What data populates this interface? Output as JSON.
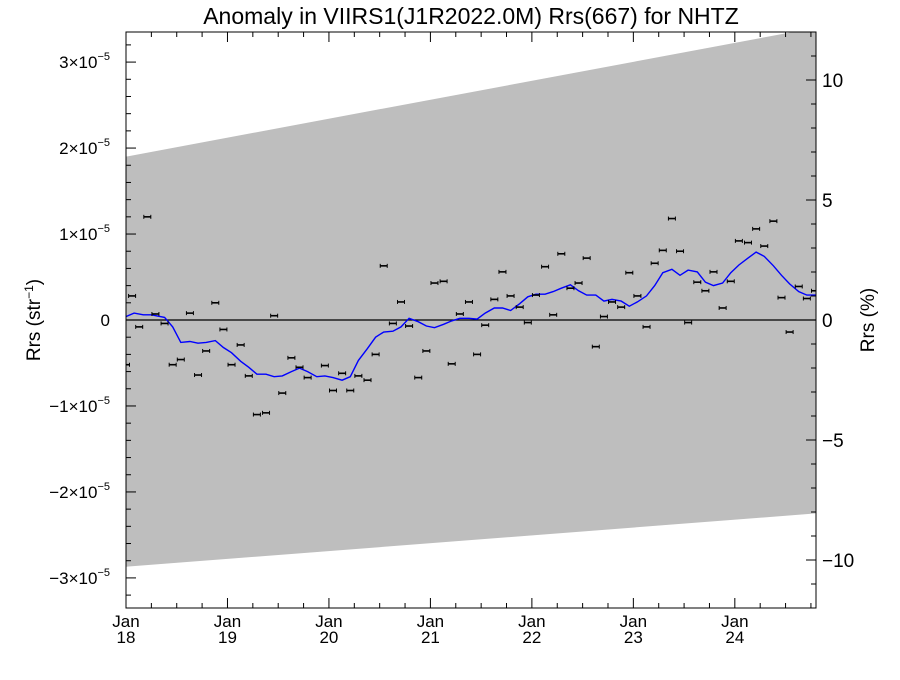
{
  "chart_data": {
    "type": "scatter",
    "title": "Anomaly in VIIRS1(J1R2022.0M) Rrs(667) for NHTZ",
    "ylabel_left_base": "Rrs (str",
    "ylabel_left_sup": "−1",
    "ylabel_left_end": ")",
    "ylabel_right": "Rrs (%)",
    "xlim": [
      2018.0,
      2024.8
    ],
    "ylim_left": [
      -3.35e-05,
      3.35e-05
    ],
    "ylim_right": [
      -12,
      12
    ],
    "x_ticks": [
      {
        "x": 2018.0,
        "top": "Jan",
        "bottom": "18"
      },
      {
        "x": 2019.0,
        "top": "Jan",
        "bottom": "19"
      },
      {
        "x": 2020.0,
        "top": "Jan",
        "bottom": "20"
      },
      {
        "x": 2021.0,
        "top": "Jan",
        "bottom": "21"
      },
      {
        "x": 2022.0,
        "top": "Jan",
        "bottom": "22"
      },
      {
        "x": 2023.0,
        "top": "Jan",
        "bottom": "23"
      },
      {
        "x": 2024.0,
        "top": "Jan",
        "bottom": "24"
      }
    ],
    "y_ticks_left": [
      {
        "v": 3e-05,
        "mant": "3×10",
        "exp": "−5"
      },
      {
        "v": 2e-05,
        "mant": "2×10",
        "exp": "−5"
      },
      {
        "v": 1e-05,
        "mant": "1×10",
        "exp": "−5"
      },
      {
        "v": 0,
        "mant": "0",
        "exp": ""
      },
      {
        "v": -1e-05,
        "mant": "−1×10",
        "exp": "−5"
      },
      {
        "v": -2e-05,
        "mant": "−2×10",
        "exp": "−5"
      },
      {
        "v": -3e-05,
        "mant": "−3×10",
        "exp": "−5"
      }
    ],
    "y_ticks_right": [
      {
        "v": 10,
        "label": "10"
      },
      {
        "v": 5,
        "label": "5"
      },
      {
        "v": 0,
        "label": "0"
      },
      {
        "v": -5,
        "label": "−5"
      },
      {
        "v": -10,
        "label": "−10"
      }
    ],
    "band": {
      "upper": [
        [
          2018.0,
          1.9e-05
        ],
        [
          2024.8,
          3.4e-05
        ]
      ],
      "lower": [
        [
          2018.0,
          -2.87e-05
        ],
        [
          2024.8,
          -2.25e-05
        ]
      ],
      "color": "#bebebe"
    },
    "zero_line": 0,
    "points": [
      [
        2018.0,
        -5.2e-06
      ],
      [
        2018.06,
        2.8e-06
      ],
      [
        2018.13,
        -8e-07
      ],
      [
        2018.21,
        1.2e-05
      ],
      [
        2018.29,
        7e-07
      ],
      [
        2018.38,
        -4e-07
      ],
      [
        2018.46,
        -5.2e-06
      ],
      [
        2018.54,
        -4.6e-06
      ],
      [
        2018.63,
        8e-07
      ],
      [
        2018.71,
        -6.4e-06
      ],
      [
        2018.79,
        -3.6e-06
      ],
      [
        2018.88,
        2e-06
      ],
      [
        2018.96,
        -1.1e-06
      ],
      [
        2019.04,
        -5.2e-06
      ],
      [
        2019.13,
        -2.9e-06
      ],
      [
        2019.21,
        -6.5e-06
      ],
      [
        2019.29,
        -1.1e-05
      ],
      [
        2019.38,
        -1.08e-05
      ],
      [
        2019.46,
        5e-07
      ],
      [
        2019.54,
        -8.5e-06
      ],
      [
        2019.63,
        -4.4e-06
      ],
      [
        2019.71,
        -5.5e-06
      ],
      [
        2019.79,
        -6.7e-06
      ],
      [
        2019.96,
        -5.3e-06
      ],
      [
        2020.04,
        -8.2e-06
      ],
      [
        2020.13,
        -6.2e-06
      ],
      [
        2020.21,
        -8.2e-06
      ],
      [
        2020.29,
        -6.5e-06
      ],
      [
        2020.38,
        -7e-06
      ],
      [
        2020.46,
        -4e-06
      ],
      [
        2020.54,
        6.3e-06
      ],
      [
        2020.63,
        -4e-07
      ],
      [
        2020.71,
        2.1e-06
      ],
      [
        2020.79,
        -7e-07
      ],
      [
        2020.88,
        -6.7e-06
      ],
      [
        2020.96,
        -3.6e-06
      ],
      [
        2021.04,
        4.3e-06
      ],
      [
        2021.13,
        4.5e-06
      ],
      [
        2021.21,
        -5.1e-06
      ],
      [
        2021.29,
        7e-07
      ],
      [
        2021.38,
        2.1e-06
      ],
      [
        2021.46,
        -4e-06
      ],
      [
        2021.54,
        -6e-07
      ],
      [
        2021.63,
        2.4e-06
      ],
      [
        2021.71,
        5.6e-06
      ],
      [
        2021.79,
        2.8e-06
      ],
      [
        2021.88,
        1.5e-06
      ],
      [
        2021.96,
        -3e-07
      ],
      [
        2022.04,
        2.9e-06
      ],
      [
        2022.13,
        6.2e-06
      ],
      [
        2022.21,
        6e-07
      ],
      [
        2022.29,
        7.7e-06
      ],
      [
        2022.38,
        3.7e-06
      ],
      [
        2022.46,
        4.3e-06
      ],
      [
        2022.54,
        7.2e-06
      ],
      [
        2022.63,
        -3.1e-06
      ],
      [
        2022.71,
        4e-07
      ],
      [
        2022.79,
        2.1e-06
      ],
      [
        2022.88,
        1.5e-06
      ],
      [
        2022.96,
        5.5e-06
      ],
      [
        2023.04,
        2.8e-06
      ],
      [
        2023.13,
        -8e-07
      ],
      [
        2023.21,
        6.6e-06
      ],
      [
        2023.29,
        8.1e-06
      ],
      [
        2023.38,
        1.18e-05
      ],
      [
        2023.46,
        8e-06
      ],
      [
        2023.54,
        -3e-07
      ],
      [
        2023.63,
        4.4e-06
      ],
      [
        2023.71,
        3.4e-06
      ],
      [
        2023.79,
        5.6e-06
      ],
      [
        2023.88,
        1.4e-06
      ],
      [
        2023.96,
        4.5e-06
      ],
      [
        2024.04,
        9.2e-06
      ],
      [
        2024.13,
        9e-06
      ],
      [
        2024.21,
        1.06e-05
      ],
      [
        2024.29,
        8.6e-06
      ],
      [
        2024.38,
        1.15e-05
      ],
      [
        2024.46,
        2.6e-06
      ],
      [
        2024.54,
        -1.4e-06
      ],
      [
        2024.63,
        3.9e-06
      ],
      [
        2024.71,
        2.5e-06
      ],
      [
        2024.79,
        3.4e-06
      ]
    ],
    "smooth_line": [
      [
        2018.0,
        4e-07
      ],
      [
        2018.08,
        8e-07
      ],
      [
        2018.17,
        6e-07
      ],
      [
        2018.25,
        6e-07
      ],
      [
        2018.38,
        3e-07
      ],
      [
        2018.46,
        -8e-07
      ],
      [
        2018.54,
        -2.6e-06
      ],
      [
        2018.63,
        -2.5e-06
      ],
      [
        2018.71,
        -2.7e-06
      ],
      [
        2018.79,
        -2.6e-06
      ],
      [
        2018.88,
        -2.4e-06
      ],
      [
        2018.96,
        -3.2e-06
      ],
      [
        2019.04,
        -3.8e-06
      ],
      [
        2019.13,
        -4.8e-06
      ],
      [
        2019.21,
        -5.5e-06
      ],
      [
        2019.29,
        -6.3e-06
      ],
      [
        2019.38,
        -6.3e-06
      ],
      [
        2019.46,
        -6.6e-06
      ],
      [
        2019.54,
        -6.5e-06
      ],
      [
        2019.63,
        -6e-06
      ],
      [
        2019.71,
        -5.6e-06
      ],
      [
        2019.79,
        -6e-06
      ],
      [
        2019.88,
        -6.6e-06
      ],
      [
        2019.96,
        -6.5e-06
      ],
      [
        2020.04,
        -6.7e-06
      ],
      [
        2020.13,
        -7e-06
      ],
      [
        2020.21,
        -6.6e-06
      ],
      [
        2020.29,
        -4.7e-06
      ],
      [
        2020.38,
        -3.3e-06
      ],
      [
        2020.46,
        -2e-06
      ],
      [
        2020.54,
        -1.4e-06
      ],
      [
        2020.63,
        -1.3e-06
      ],
      [
        2020.71,
        -8e-07
      ],
      [
        2020.79,
        2e-07
      ],
      [
        2020.88,
        -2e-07
      ],
      [
        2020.96,
        -7e-07
      ],
      [
        2021.04,
        -9e-07
      ],
      [
        2021.13,
        -5e-07
      ],
      [
        2021.21,
        -1e-07
      ],
      [
        2021.29,
        2e-07
      ],
      [
        2021.38,
        2e-07
      ],
      [
        2021.46,
        1e-07
      ],
      [
        2021.54,
        8e-07
      ],
      [
        2021.63,
        1.4e-06
      ],
      [
        2021.71,
        1.4e-06
      ],
      [
        2021.79,
        1.1e-06
      ],
      [
        2021.88,
        1.9e-06
      ],
      [
        2021.96,
        2.7e-06
      ],
      [
        2022.04,
        3e-06
      ],
      [
        2022.13,
        3e-06
      ],
      [
        2022.21,
        3.3e-06
      ],
      [
        2022.29,
        3.7e-06
      ],
      [
        2022.38,
        4.1e-06
      ],
      [
        2022.46,
        3.4e-06
      ],
      [
        2022.54,
        2.9e-06
      ],
      [
        2022.63,
        2.9e-06
      ],
      [
        2022.71,
        2.2e-06
      ],
      [
        2022.79,
        2.4e-06
      ],
      [
        2022.88,
        2.2e-06
      ],
      [
        2022.96,
        1.6e-06
      ],
      [
        2023.04,
        2.1e-06
      ],
      [
        2023.13,
        2.8e-06
      ],
      [
        2023.21,
        4e-06
      ],
      [
        2023.29,
        5.5e-06
      ],
      [
        2023.38,
        5.9e-06
      ],
      [
        2023.46,
        5.2e-06
      ],
      [
        2023.54,
        5.8e-06
      ],
      [
        2023.63,
        5.6e-06
      ],
      [
        2023.71,
        4.4e-06
      ],
      [
        2023.79,
        4e-06
      ],
      [
        2023.88,
        4.3e-06
      ],
      [
        2023.96,
        5.5e-06
      ],
      [
        2024.04,
        6.4e-06
      ],
      [
        2024.13,
        7.2e-06
      ],
      [
        2024.21,
        7.9e-06
      ],
      [
        2024.29,
        7.4e-06
      ],
      [
        2024.38,
        6.3e-06
      ],
      [
        2024.46,
        5.2e-06
      ],
      [
        2024.54,
        4.2e-06
      ],
      [
        2024.63,
        3.3e-06
      ],
      [
        2024.71,
        2.9e-06
      ],
      [
        2024.8,
        2.9e-06
      ]
    ],
    "line_color": "#0000ff",
    "point_color": "#000000",
    "grid": false
  }
}
